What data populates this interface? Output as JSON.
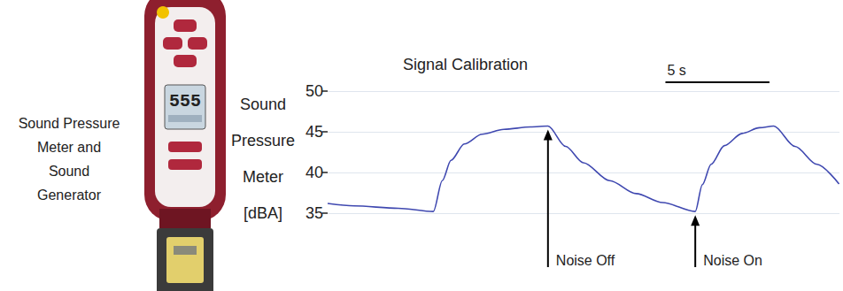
{
  "chart_data": {
    "type": "line",
    "title": "Signal Calibration",
    "y_label": "Sound Pressure Meter [dBA]",
    "x": [
      0,
      1.27,
      3.39,
      5.08,
      5.51,
      5.93,
      6.57,
      7.42,
      8.47,
      9.75,
      10.59,
      11.44,
      12.29,
      13.56,
      14.83,
      16.1,
      17.67,
      18.01,
      18.43,
      19.07,
      19.92,
      20.76,
      21.44,
      22.46,
      23.52,
      24.58
    ],
    "values": [
      36.2,
      35.9,
      35.6,
      35.2,
      39.0,
      41.5,
      43.5,
      44.7,
      45.3,
      45.6,
      45.7,
      43.2,
      41.2,
      39.0,
      37.4,
      36.3,
      35.2,
      38.5,
      41.0,
      43.3,
      44.8,
      45.5,
      45.7,
      43.2,
      41.0,
      38.6
    ],
    "color": "#3f48b0",
    "xlim": [
      0,
      24.6
    ],
    "ylim": [
      35,
      50
    ],
    "yticks": [
      35,
      40,
      45,
      50
    ],
    "grid": true,
    "tick_labels": "y",
    "scale_bar": {
      "label": "5 s",
      "length": 5
    },
    "annotations": [
      {
        "text": "Noise Off",
        "x": 10.59
      },
      {
        "text": "Noise On",
        "x": 17.67
      }
    ]
  },
  "side_label": "Sound Pressure Meter and Sound Generator",
  "meter_display": "555"
}
